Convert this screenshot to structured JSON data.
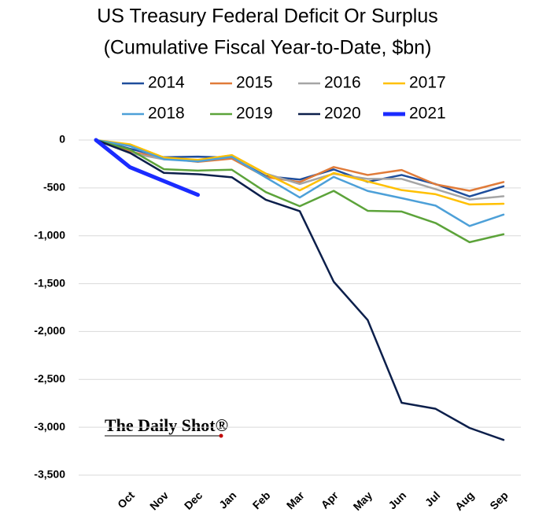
{
  "chart_data": {
    "type": "line",
    "title": "US Treasury Federal Deficit Or Surplus",
    "subtitle": "(Cumulative Fiscal Year-to-Date, $bn)",
    "watermark": "The Daily Shot®",
    "categories": [
      null,
      "Oct",
      "Nov",
      "Dec",
      "Jan",
      "Feb",
      "Mar",
      "Apr",
      "May",
      "Jun",
      "Jul",
      "Aug",
      "Sep"
    ],
    "series": [
      {
        "name": "2014",
        "color": "#1f4e9c",
        "line_width": 2.5,
        "values": [
          0,
          -91,
          -180,
          -174,
          -184,
          -378,
          -413,
          -307,
          -437,
          -365,
          -460,
          -589,
          -483
        ]
      },
      {
        "name": "2015",
        "color": "#e07b39",
        "line_width": 2.5,
        "values": [
          0,
          -122,
          -190,
          -228,
          -194,
          -386,
          -439,
          -282,
          -365,
          -313,
          -463,
          -530,
          -439
        ]
      },
      {
        "name": "2016",
        "color": "#a5a5a5",
        "line_width": 2.5,
        "values": [
          0,
          -136,
          -201,
          -213,
          -158,
          -351,
          -459,
          -352,
          -406,
          -406,
          -513,
          -621,
          -587
        ]
      },
      {
        "name": "2017",
        "color": "#ffc000",
        "line_width": 2.5,
        "values": [
          0,
          -45,
          -183,
          -207,
          -158,
          -350,
          -526,
          -344,
          -433,
          -523,
          -566,
          -673,
          -666
        ]
      },
      {
        "name": "2018",
        "color": "#4da0d8",
        "line_width": 2.5,
        "values": [
          0,
          -63,
          -201,
          -224,
          -176,
          -391,
          -600,
          -385,
          -532,
          -607,
          -685,
          -898,
          -779
        ]
      },
      {
        "name": "2019",
        "color": "#5ca33a",
        "line_width": 2.5,
        "values": [
          0,
          -100,
          -305,
          -319,
          -310,
          -544,
          -691,
          -531,
          -739,
          -747,
          -867,
          -1067,
          -984
        ]
      },
      {
        "name": "2020",
        "color": "#0c1f4b",
        "line_width": 2.5,
        "values": [
          0,
          -134,
          -343,
          -357,
          -389,
          -624,
          -743,
          -1480,
          -1880,
          -2744,
          -2807,
          -3007,
          -3132
        ]
      },
      {
        "name": "2021",
        "color": "#1a2bff",
        "line_width": 5,
        "values": [
          0,
          -284,
          -429,
          -573,
          null,
          null,
          null,
          null,
          null,
          null,
          null,
          null,
          null
        ]
      }
    ],
    "ylim": [
      -3500,
      0
    ],
    "yticks": [
      0,
      -500,
      {
        "value": -1000,
        "label": "-1,000"
      },
      {
        "value": -1500,
        "label": "-1,500"
      },
      {
        "value": -2000,
        "label": "-2,000"
      },
      {
        "value": -2500,
        "label": "-2,500"
      },
      {
        "value": -3000,
        "label": "-3,000"
      },
      {
        "value": -3500,
        "label": "-3,500"
      }
    ],
    "grid": true
  }
}
